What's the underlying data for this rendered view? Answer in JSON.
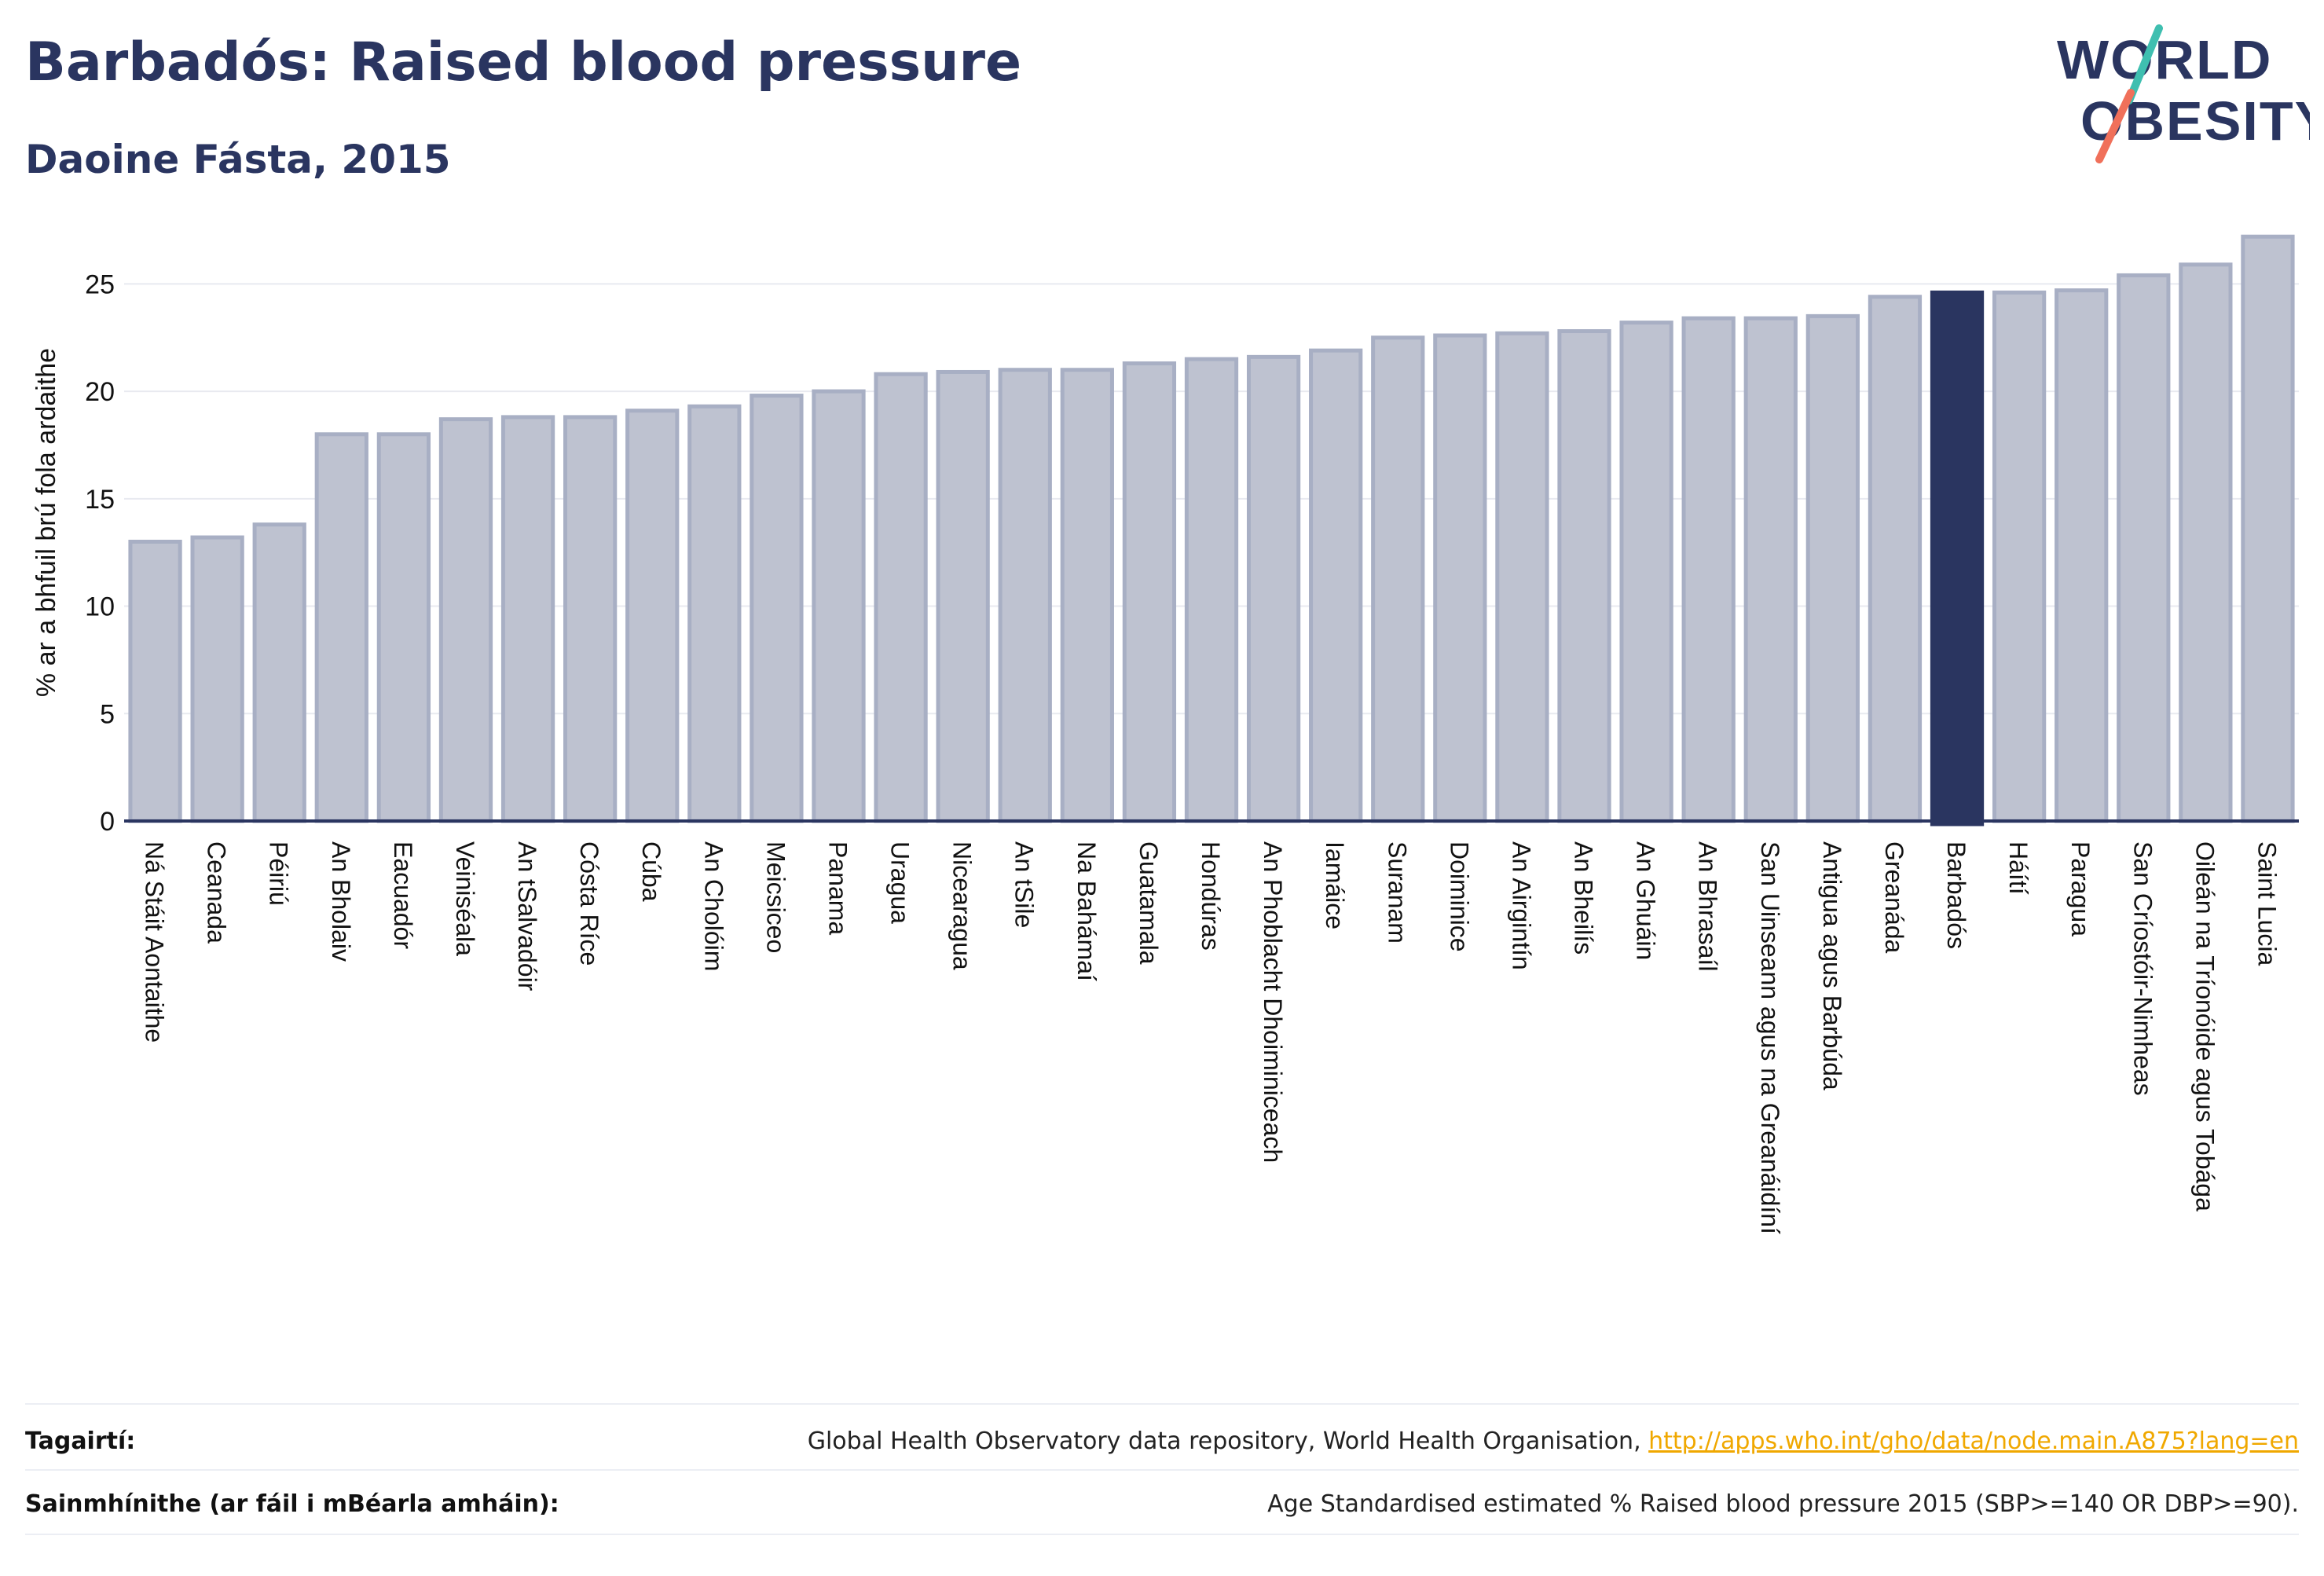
{
  "header": {
    "title": "Barbadós: Raised blood pressure",
    "subtitle": "Daoine Fásta, 2015"
  },
  "logo": {
    "line1": "WORLD",
    "line2": "OBESITY"
  },
  "chart_data": {
    "type": "bar",
    "ylabel": "% ar a bhfuil brú fola ardaithe",
    "ylim": [
      0,
      27.5
    ],
    "yticks": [
      0,
      5,
      10,
      15,
      20,
      25
    ],
    "grid": true,
    "highlight": "Barbadós",
    "colors": {
      "bar": "#bec2d0",
      "bar_edge": "#a8afc4",
      "highlight": "#2a3560"
    },
    "categories": [
      "Ná Stáit Aontaithe",
      "Ceanada",
      "Péiriú",
      "An Bholaiv",
      "Eacuadór",
      "Veiniséala",
      "An tSalvadóir",
      "Cósta Ríce",
      "Cúba",
      "An Cholóim",
      "Meicsiceo",
      "Panama",
      "Uragua",
      "Nicearagua",
      "An tSile",
      "Na Bahámaí",
      "Guatamala",
      "Hondúras",
      "An Phoblacht Dhoiminiceach",
      "Iamáice",
      "Suranam",
      "Doiminice",
      "An Airgintín",
      "An Bheilís",
      "An Ghuáin",
      "An Bhrasaíl",
      "San Uinseann agus na Greanáidíní",
      "Antigua agus Barbúda",
      "Greanáda",
      "Barbadós",
      "Háítí",
      "Paragua",
      "San Críostóir-Nimheas",
      "Oileán na Tríonóide agus Tobága",
      "Saint Lucia"
    ],
    "values": [
      13.0,
      13.2,
      13.8,
      18.0,
      18.0,
      18.7,
      18.8,
      18.8,
      19.1,
      19.3,
      19.8,
      20.0,
      20.8,
      20.9,
      21.0,
      21.0,
      21.3,
      21.5,
      21.6,
      21.9,
      22.5,
      22.6,
      22.7,
      22.8,
      23.2,
      23.4,
      23.4,
      23.5,
      24.4,
      24.6,
      24.6,
      24.7,
      25.4,
      25.9,
      27.2
    ]
  },
  "sources": {
    "references_label": "Tagairtí:",
    "references_text": "Global Health Observatory data repository, World Health Organisation, ",
    "references_link": "http://apps.who.int/gho/data/node.main.A875?lang=en",
    "definitions_label": "Sainmhínithe (ar fáil i mBéarla amháin):",
    "definitions_text": "Age Standardised estimated % Raised blood pressure 2015 (SBP>=140 OR DBP>=90)."
  }
}
